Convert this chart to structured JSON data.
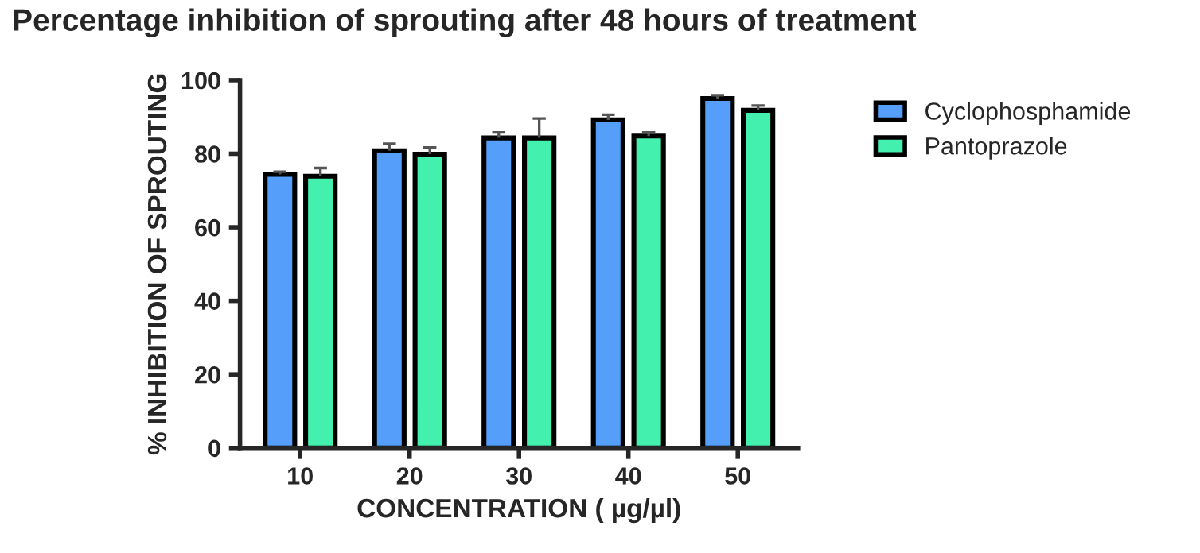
{
  "chart_data": {
    "type": "bar",
    "title": "Percentage inhibition of sprouting after 48 hours of treatment",
    "xlabel": "CONCENTRATION ( µg/µl)",
    "ylabel": "% INHIBITION OF SPROUTING",
    "categories": [
      "10",
      "20",
      "30",
      "40",
      "50"
    ],
    "series": [
      {
        "name": "Cyclophosphamide",
        "color": "#559ffb",
        "values": [
          74.4,
          80.8,
          84.3,
          89.2,
          95.0
        ],
        "errors": [
          [
            74.4,
            75.1
          ],
          [
            80.8,
            82.7
          ],
          [
            84.3,
            85.8
          ],
          [
            89.2,
            90.6
          ],
          [
            95.0,
            95.9
          ]
        ]
      },
      {
        "name": "Pantoprazole",
        "color": "#44f0ae",
        "values": [
          73.9,
          79.9,
          84.3,
          84.8,
          91.8
        ],
        "errors": [
          [
            73.9,
            76.1
          ],
          [
            79.9,
            81.7
          ],
          [
            84.3,
            89.6
          ],
          [
            84.8,
            85.8
          ],
          [
            91.8,
            93.1
          ]
        ]
      }
    ],
    "ylim": [
      0,
      100
    ],
    "yticks": [
      0,
      20,
      40,
      60,
      80,
      100
    ],
    "grid": false,
    "legend": "top right"
  }
}
